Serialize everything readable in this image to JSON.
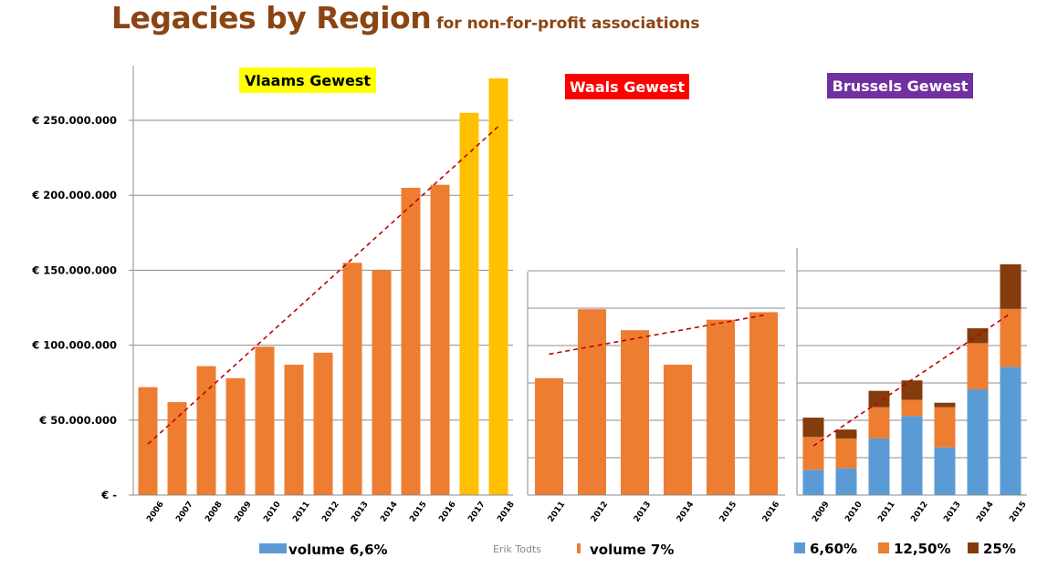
{
  "title": "Legacies by Region",
  "subtitle": "for non-for-profit associations",
  "credit": "Erik Todts",
  "colors": {
    "orange": "#ED7D31",
    "gold": "#FFC000",
    "blue": "#5B9BD5",
    "brown": "#843C0C",
    "trend": "#C00000",
    "title": "#8B4513"
  },
  "chart_data": [
    {
      "type": "bar",
      "title": "Vlaams Gewest",
      "title_bg": "#FFFF00",
      "title_color": "#000000",
      "categories": [
        "2006",
        "2007",
        "2008",
        "2009",
        "2010",
        "2011",
        "2012",
        "2013",
        "2014",
        "2015",
        "2016",
        "2017",
        "2018"
      ],
      "values": [
        72000000,
        62000000,
        86000000,
        78000000,
        99000000,
        87000000,
        95000000,
        155000000,
        150000000,
        205000000,
        207000000,
        255000000,
        278000000
      ],
      "bar_colors": [
        "#ED7D31",
        "#ED7D31",
        "#ED7D31",
        "#ED7D31",
        "#ED7D31",
        "#ED7D31",
        "#ED7D31",
        "#ED7D31",
        "#ED7D31",
        "#ED7D31",
        "#ED7D31",
        "#FFC000",
        "#FFC000"
      ],
      "ylim": [
        0,
        285000000
      ],
      "yticks": [
        0,
        50000000,
        100000000,
        150000000,
        200000000,
        250000000
      ],
      "ytick_labels": [
        "€ -",
        "€ 50.000.000",
        "€ 100.000.000",
        "€ 150.000.000",
        "€ 200.000.000",
        "€ 250.000.000"
      ],
      "trendline": [
        34000000,
        246000000
      ],
      "legend": "volume 6,6%",
      "legend_color": "#5B9BD5",
      "grid": true
    },
    {
      "type": "bar",
      "title": "Waals Gewest",
      "title_bg": "#FF0000",
      "title_color": "#FFFFFF",
      "categories": [
        "2011",
        "2012",
        "2013",
        "2014",
        "2015",
        "2016"
      ],
      "values": [
        78000000,
        124000000,
        110000000,
        87000000,
        117000000,
        122000000
      ],
      "ylim": [
        0,
        285000000
      ],
      "yticks": [
        0,
        25000000,
        50000000,
        75000000,
        100000000,
        125000000,
        150000000
      ],
      "trendline": [
        94000000,
        120000000
      ],
      "legend": "volume 7%",
      "legend_color": "#ED7D31",
      "grid": true
    },
    {
      "type": "bar",
      "stacked": true,
      "title": "Brussels Gewest",
      "title_bg": "#7030A0",
      "title_color": "#FFFFFF",
      "categories": [
        "2009",
        "2010",
        "2011",
        "2012",
        "2013",
        "2014",
        "2015"
      ],
      "series": [
        {
          "name": "6,60%",
          "color": "#5B9BD5",
          "values": [
            17,
            18,
            38,
            53,
            32,
            71,
            86
          ]
        },
        {
          "name": "12,50%",
          "color": "#ED7D31",
          "values": [
            22,
            20,
            21,
            11,
            27,
            31,
            39
          ]
        },
        {
          "name": "25%",
          "color": "#843C0C",
          "values": [
            13,
            6,
            11,
            13,
            3,
            10,
            30
          ]
        }
      ],
      "ylim": [
        0,
        164
      ],
      "yticks": [
        0,
        25,
        50,
        75,
        100,
        125,
        150
      ],
      "trendline": [
        33,
        122
      ],
      "grid": true
    }
  ]
}
